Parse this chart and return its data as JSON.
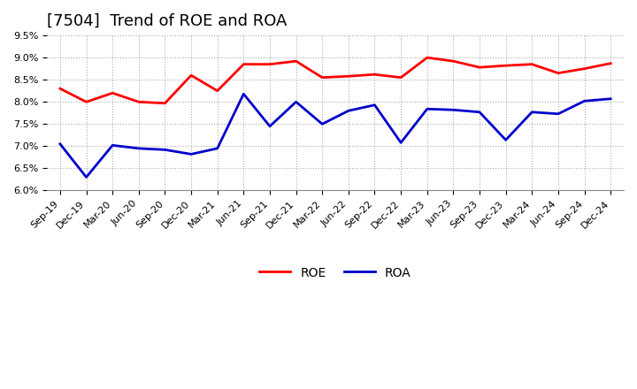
{
  "title": "[7504]  Trend of ROE and ROA",
  "x_labels": [
    "Sep-19",
    "Dec-19",
    "Mar-20",
    "Jun-20",
    "Sep-20",
    "Dec-20",
    "Mar-21",
    "Jun-21",
    "Sep-21",
    "Dec-21",
    "Mar-22",
    "Jun-22",
    "Sep-22",
    "Dec-22",
    "Mar-23",
    "Jun-23",
    "Sep-23",
    "Dec-23",
    "Mar-24",
    "Jun-24",
    "Sep-24",
    "Dec-24"
  ],
  "roe": [
    8.3,
    8.0,
    8.2,
    8.0,
    7.97,
    8.6,
    8.25,
    8.85,
    8.85,
    8.92,
    8.55,
    8.58,
    8.62,
    8.55,
    9.0,
    8.92,
    8.78,
    8.82,
    8.85,
    8.65,
    8.75,
    8.87
  ],
  "roa": [
    7.05,
    6.3,
    7.02,
    6.95,
    6.92,
    6.82,
    6.95,
    8.18,
    7.45,
    8.0,
    7.5,
    7.8,
    7.93,
    7.08,
    7.84,
    7.82,
    7.77,
    7.14,
    7.77,
    7.73,
    8.02,
    8.07
  ],
  "roe_color": "#ff0000",
  "roa_color": "#0000cc",
  "ylim": [
    6.0,
    9.5
  ],
  "yticks": [
    6.0,
    6.5,
    7.0,
    7.5,
    8.0,
    8.5,
    9.0,
    9.5
  ],
  "background_color": "#ffffff",
  "grid_color": "#aaaaaa",
  "title_fontsize": 13,
  "legend_labels": [
    "ROE",
    "ROA"
  ]
}
